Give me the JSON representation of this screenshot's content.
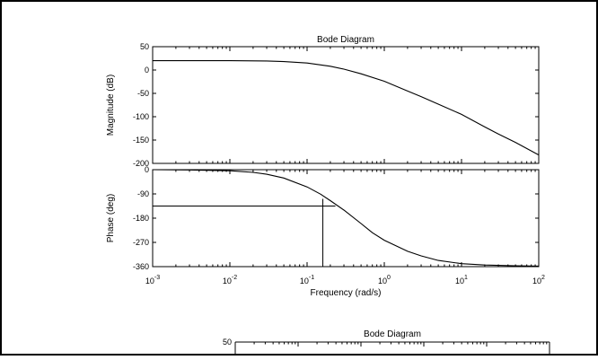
{
  "chart_data": [
    {
      "type": "line",
      "title": "Bode Diagram",
      "xlabel": "Frequency  (rad/s)",
      "x_scale": "log",
      "xlim": [
        0.001,
        100
      ],
      "x_ticks": [
        {
          "base": "10",
          "exp": "-3"
        },
        {
          "base": "10",
          "exp": "-2"
        },
        {
          "base": "10",
          "exp": "-1"
        },
        {
          "base": "10",
          "exp": "0"
        },
        {
          "base": "10",
          "exp": "1"
        },
        {
          "base": "10",
          "exp": "2"
        }
      ],
      "grid": false,
      "panels": [
        {
          "name": "magnitude",
          "ylabel": "Magnitude (dB)",
          "ylim": [
            -200,
            50
          ],
          "y_ticks": [
            "50",
            "0",
            "-50",
            "-100",
            "-150",
            "-200"
          ],
          "series": [
            {
              "x": [
                0.001,
                0.003,
                0.01,
                0.03,
                0.05,
                0.1,
                0.2,
                0.3,
                0.5,
                1,
                2,
                3,
                5,
                10,
                20,
                30,
                50,
                100
              ],
              "values": [
                20,
                20,
                20,
                19.5,
                18,
                15,
                8,
                2,
                -8,
                -24,
                -45,
                -57,
                -73,
                -95,
                -122,
                -137,
                -155,
                -182
              ]
            }
          ]
        },
        {
          "name": "phase",
          "ylabel": "Phase (deg)",
          "ylim": [
            -360,
            0
          ],
          "y_ticks": [
            "0",
            "-90",
            "-180",
            "-270",
            "-360"
          ],
          "series": [
            {
              "x": [
                0.001,
                0.003,
                0.01,
                0.02,
                0.03,
                0.05,
                0.1,
                0.15,
                0.2,
                0.3,
                0.5,
                0.7,
                1,
                2,
                3,
                5,
                10,
                20,
                50,
                100
              ],
              "values": [
                0,
                -1,
                -4,
                -10,
                -17,
                -31,
                -64,
                -91,
                -115,
                -150,
                -200,
                -234,
                -262,
                -303,
                -320,
                -337,
                -349,
                -354,
                -357,
                -358
              ]
            }
          ],
          "annotation": {
            "type": "crosshair",
            "x": 0.16,
            "y": -135
          }
        }
      ]
    },
    {
      "type": "line",
      "title": "Bode Diagram",
      "x_scale": "log",
      "visible_y_ticks": [
        "50"
      ]
    }
  ]
}
